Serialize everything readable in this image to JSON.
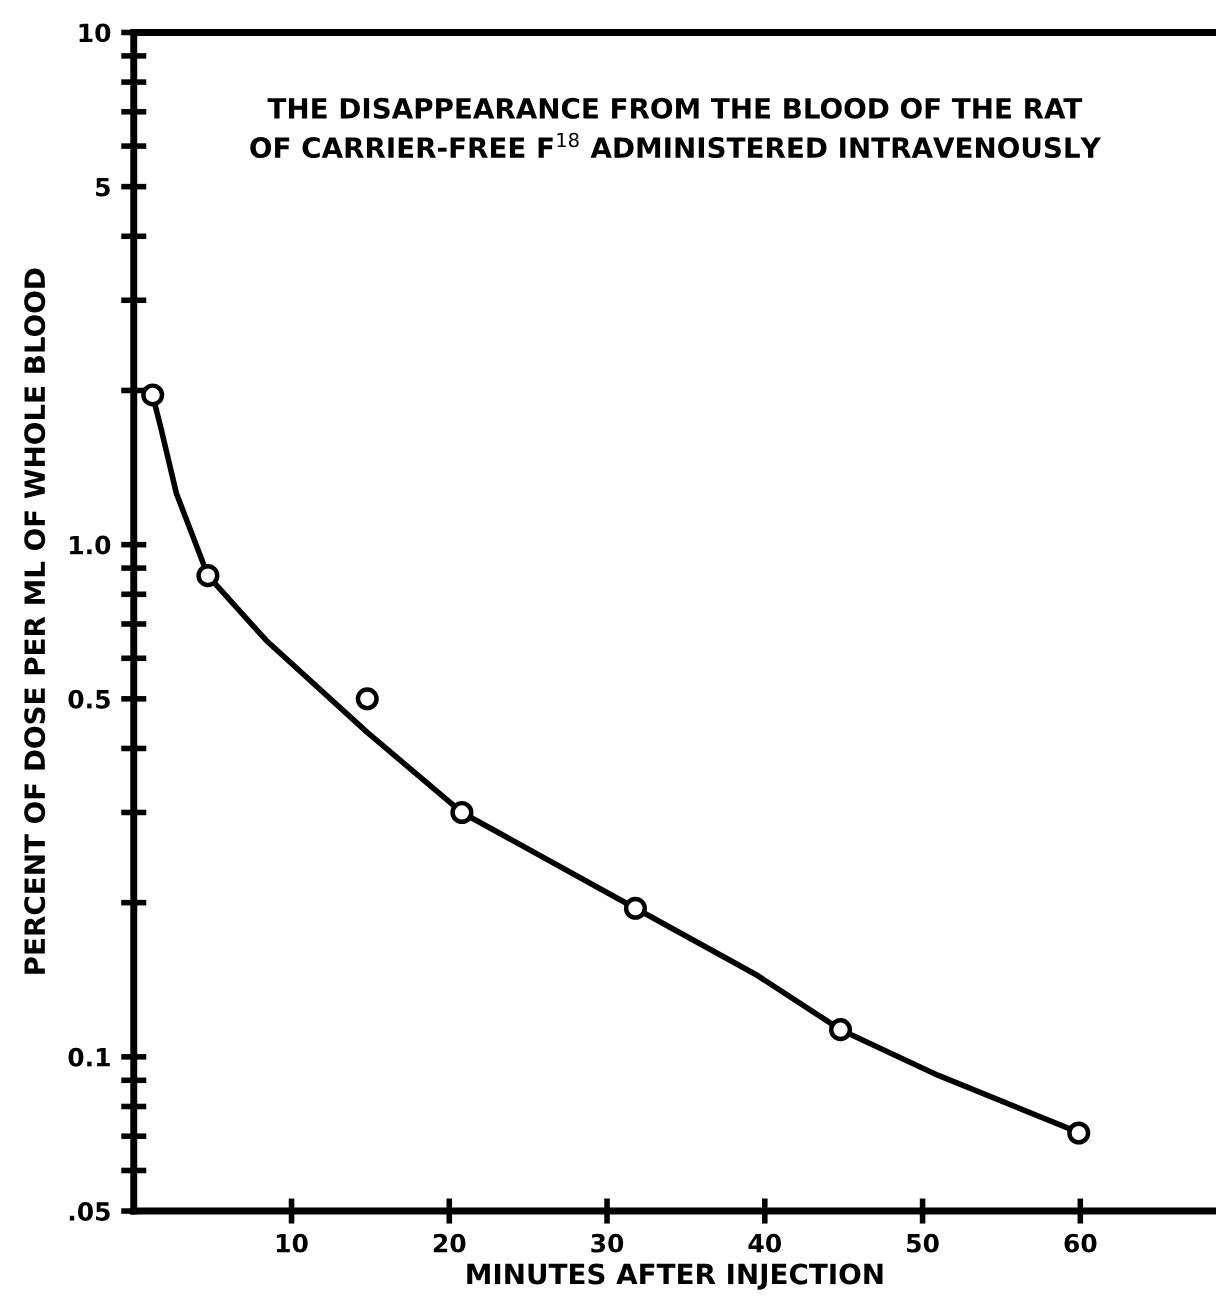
{
  "chart_data": {
    "type": "scatter",
    "title": "THE DISAPPEARANCE FROM THE BLOOD OF THE RAT\nOF CARRIER-FREE F$^{18}$ ADMINISTERED INTRAVENOUSLY",
    "xlabel": "MINUTES AFTER INJECTION",
    "ylabel": "PERCENT OF DOSE PER ML OF WHOLE BLOOD",
    "series": [
      {
        "color": "#000000",
        "marker": "circle",
        "x": [
          1.2,
          4.7,
          14.8,
          20.8,
          31.8,
          44.8,
          59.9
        ],
        "values": [
          1.96,
          0.87,
          0.5,
          0.3,
          0.195,
          0.113,
          0.071
        ]
      },
      {
        "type": "line",
        "color": "#000000",
        "marker": "none",
        "line_style": "solid",
        "x": [
          1.3,
          1.7,
          2.7,
          4.7,
          8.4,
          14.8,
          20.8,
          31.8,
          39.4,
          44.8,
          51,
          60
        ],
        "values": [
          1.9,
          1.7,
          1.26,
          0.87,
          0.65,
          0.43,
          0.3,
          0.195,
          0.145,
          0.113,
          0.092,
          0.071
        ]
      }
    ],
    "log": "y",
    "grid": false,
    "legend": false,
    "xlim": [
      0,
      68.6
    ],
    "ylim": [
      0.05,
      10
    ],
    "xticks": [
      10,
      20,
      30,
      40,
      50,
      60
    ],
    "yticks": [
      {
        "value": 0.05,
        "label": ".05"
      },
      {
        "value": 0.06,
        "label": null
      },
      {
        "value": 0.07,
        "label": null
      },
      {
        "value": 0.08,
        "label": null
      },
      {
        "value": 0.09,
        "label": null
      },
      0.1,
      {
        "value": 0.2,
        "label": null
      },
      {
        "value": 0.3,
        "label": null
      },
      {
        "value": 0.4,
        "label": null
      },
      0.5,
      {
        "value": 0.6,
        "label": null
      },
      {
        "value": 0.7,
        "label": null
      },
      {
        "value": 0.8,
        "label": null
      },
      {
        "value": 0.9,
        "label": null
      },
      {
        "value": 1.0,
        "label": "1.0"
      },
      {
        "value": 2,
        "label": null
      },
      {
        "value": 3,
        "label": null
      },
      {
        "value": 4,
        "label": null
      },
      5,
      {
        "value": 6,
        "label": null
      },
      {
        "value": 7,
        "label": null
      },
      {
        "value": 8,
        "label": null
      },
      {
        "value": 9,
        "label": null
      },
      10
    ]
  }
}
